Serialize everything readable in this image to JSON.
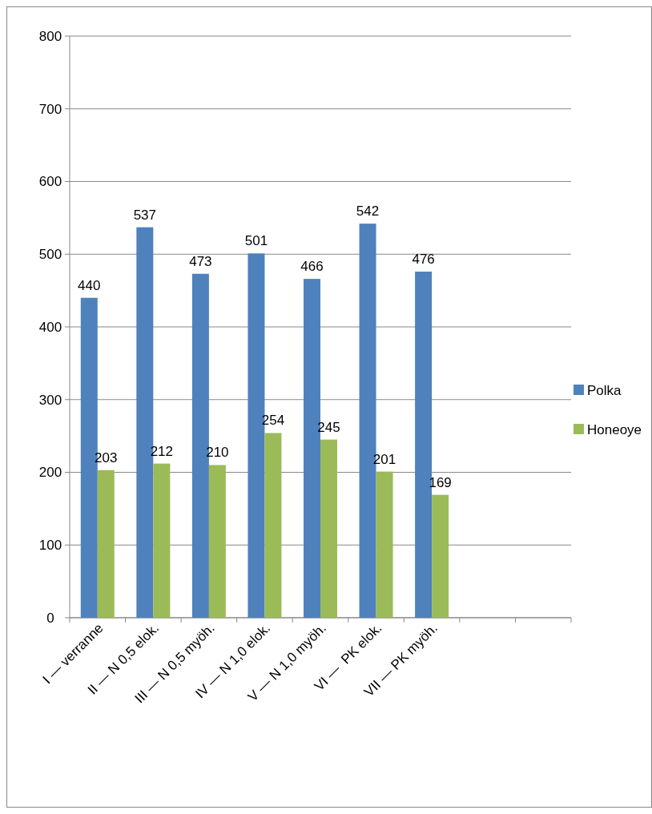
{
  "chart_data": {
    "type": "bar",
    "categories": [
      "I — verranne",
      "II — N 0,5 elok.",
      "III — N 0,5 myöh.",
      "IV — N 1,0 elok.",
      "V — N 1,0 myöh.",
      "VI —  PK elok.",
      "VII — PK myöh.",
      null,
      null
    ],
    "series": [
      {
        "name": "Polka",
        "color": "#4f81bd",
        "values": [
          440,
          537,
          473,
          501,
          466,
          542,
          476,
          null,
          null
        ]
      },
      {
        "name": "Honeoye",
        "color": "#9bbb59",
        "values": [
          203,
          212,
          210,
          254,
          245,
          201,
          169,
          null,
          null
        ]
      }
    ],
    "ylim": [
      0,
      800
    ],
    "yticks": [
      0,
      100,
      200,
      300,
      400,
      500,
      600,
      700,
      800
    ],
    "grid": "y",
    "legend": "right",
    "data_labels": true
  }
}
